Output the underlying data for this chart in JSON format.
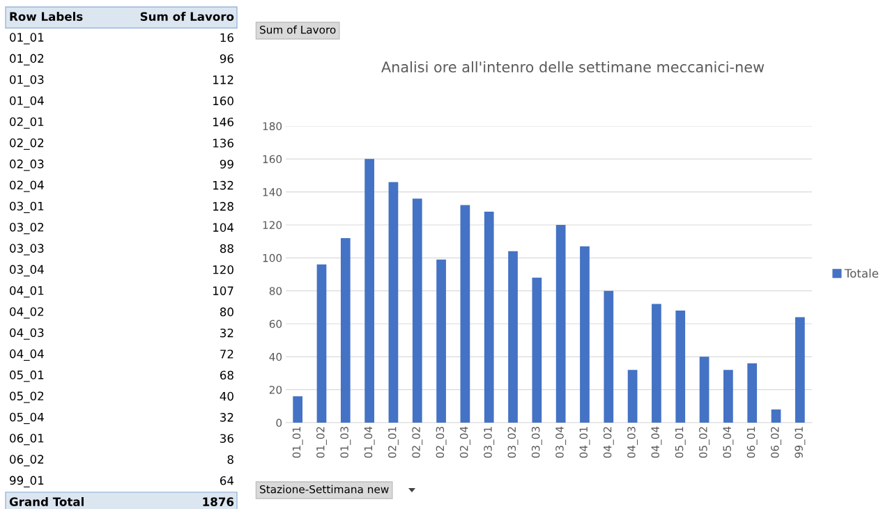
{
  "chart_data": [
    {
      "type": "other",
      "annotations": [
        "Row Labels",
        "Sum of Lavoro",
        "01_01",
        "16",
        "01_02",
        "96",
        "01_03",
        "112",
        "01_04",
        "160",
        "02_01",
        "146",
        "02_02",
        "136",
        "02_03",
        "99",
        "02_04",
        "132",
        "03_01",
        "128",
        "03_02",
        "104",
        "03_03",
        "88",
        "03_04",
        "120",
        "04_01",
        "107",
        "04_02",
        "80",
        "04_03",
        "32",
        "04_04",
        "72",
        "05_01",
        "68",
        "05_02",
        "40",
        "05_04",
        "32",
        "06_01",
        "36",
        "06_02",
        "8",
        "99_01",
        "64",
        "Grand Total",
        "1876"
      ]
    },
    {
      "type": "bar",
      "title": "Analisi ore all'intenro delle settimane meccanici-new",
      "categories": [
        "01_01",
        "01_02",
        "01_03",
        "01_04",
        "02_01",
        "02_02",
        "02_03",
        "02_04",
        "03_01",
        "03_02",
        "03_03",
        "03_04",
        "04_01",
        "04_02",
        "04_03",
        "04_04",
        "05_01",
        "05_02",
        "05_04",
        "06_01",
        "06_02",
        "99_01"
      ],
      "series": [
        {
          "name": "Totale",
          "color": "#4472c4",
          "values": [
            16,
            96,
            112,
            160,
            146,
            136,
            99,
            132,
            128,
            104,
            88,
            120,
            107,
            80,
            32,
            72,
            68,
            40,
            32,
            36,
            8,
            64
          ]
        }
      ],
      "ylim": [
        0,
        180
      ],
      "yticks": [
        0,
        20,
        40,
        60,
        80,
        100,
        120,
        140,
        160,
        180
      ],
      "grid": "y",
      "legend": "right",
      "annotations": [
        "Sum of Lavoro",
        "Stazione-Settimana new"
      ]
    }
  ]
}
